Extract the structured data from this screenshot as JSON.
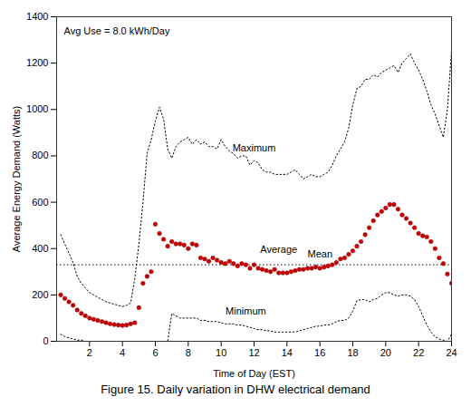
{
  "chart_data": {
    "type": "line",
    "title": "Figure 15.  Daily variation in DHW electrical demand",
    "xlabel": "Time of Day (EST)",
    "ylabel": "Average Energy Demand (Watts)",
    "annotations": [
      "Avg Use = 8.0 kWh/Day"
    ],
    "xlim": [
      0,
      24
    ],
    "ylim": [
      0,
      1400
    ],
    "xticks": [
      2,
      4,
      6,
      8,
      10,
      12,
      14,
      16,
      18,
      20,
      22,
      24
    ],
    "yticks": [
      0,
      200,
      400,
      600,
      800,
      1000,
      1200,
      1400
    ],
    "grid": false,
    "x": [
      0.25,
      0.5,
      0.75,
      1.0,
      1.25,
      1.5,
      1.75,
      2.0,
      2.25,
      2.5,
      2.75,
      3.0,
      3.25,
      3.5,
      3.75,
      4.0,
      4.25,
      4.5,
      4.75,
      5.0,
      5.25,
      5.5,
      5.75,
      6.0,
      6.25,
      6.5,
      6.75,
      7.0,
      7.25,
      7.5,
      7.75,
      8.0,
      8.25,
      8.5,
      8.75,
      9.0,
      9.25,
      9.5,
      9.75,
      10.0,
      10.25,
      10.5,
      10.75,
      11.0,
      11.25,
      11.5,
      11.75,
      12.0,
      12.25,
      12.5,
      12.75,
      13.0,
      13.25,
      13.5,
      13.75,
      14.0,
      14.25,
      14.5,
      14.75,
      15.0,
      15.25,
      15.5,
      15.75,
      16.0,
      16.25,
      16.5,
      16.75,
      17.0,
      17.25,
      17.5,
      17.75,
      18.0,
      18.25,
      18.5,
      18.75,
      19.0,
      19.25,
      19.5,
      19.75,
      20.0,
      20.25,
      20.5,
      20.75,
      21.0,
      21.25,
      21.5,
      21.75,
      22.0,
      22.25,
      22.5,
      22.75,
      23.0,
      23.25,
      23.5,
      23.75,
      24.0
    ],
    "series": [
      {
        "name": "Maximum",
        "type": "line",
        "line_style": "dotted",
        "color": "black",
        "values": [
          460,
          420,
          380,
          340,
          280,
          250,
          230,
          210,
          200,
          190,
          180,
          170,
          165,
          160,
          155,
          150,
          155,
          165,
          270,
          420,
          600,
          810,
          870,
          950,
          1010,
          960,
          830,
          790,
          840,
          860,
          870,
          880,
          850,
          870,
          850,
          860,
          840,
          840,
          830,
          870,
          840,
          820,
          810,
          790,
          800,
          800,
          760,
          780,
          770,
          740,
          730,
          730,
          720,
          720,
          720,
          720,
          730,
          740,
          720,
          700,
          710,
          720,
          710,
          710,
          720,
          730,
          760,
          800,
          830,
          860,
          920,
          1020,
          1090,
          1100,
          1130,
          1130,
          1150,
          1140,
          1160,
          1170,
          1180,
          1190,
          1160,
          1200,
          1220,
          1240,
          1200,
          1170,
          1130,
          1080,
          1020,
          980,
          930,
          880,
          1000,
          1250
        ]
      },
      {
        "name": "Minimum",
        "type": "line",
        "line_style": "dotted",
        "color": "black",
        "values": [
          30,
          20,
          15,
          10,
          5,
          5,
          0,
          0,
          0,
          0,
          0,
          0,
          0,
          0,
          0,
          0,
          0,
          0,
          0,
          0,
          0,
          0,
          0,
          0,
          0,
          0,
          0,
          120,
          110,
          100,
          100,
          100,
          100,
          100,
          90,
          90,
          85,
          85,
          85,
          80,
          75,
          75,
          75,
          70,
          70,
          65,
          60,
          55,
          50,
          50,
          45,
          45,
          40,
          40,
          40,
          40,
          40,
          40,
          45,
          50,
          55,
          60,
          65,
          65,
          70,
          70,
          75,
          85,
          90,
          90,
          100,
          130,
          175,
          180,
          180,
          170,
          180,
          185,
          200,
          210,
          210,
          200,
          195,
          200,
          200,
          195,
          180,
          150,
          110,
          70,
          40,
          20,
          10,
          5,
          0,
          30
        ]
      },
      {
        "name": "Average",
        "type": "scatter",
        "marker": "circle",
        "color": "#cc0000",
        "values": [
          200,
          185,
          170,
          155,
          135,
          120,
          110,
          100,
          95,
          90,
          85,
          80,
          75,
          72,
          70,
          68,
          70,
          75,
          80,
          145,
          250,
          280,
          300,
          505,
          465,
          440,
          410,
          430,
          420,
          420,
          415,
          400,
          420,
          415,
          360,
          355,
          345,
          360,
          350,
          340,
          335,
          345,
          335,
          325,
          335,
          330,
          315,
          330,
          315,
          310,
          305,
          300,
          310,
          295,
          295,
          295,
          300,
          305,
          310,
          310,
          315,
          315,
          320,
          315,
          320,
          325,
          330,
          340,
          355,
          360,
          375,
          390,
          410,
          430,
          460,
          490,
          520,
          545,
          560,
          575,
          590,
          590,
          570,
          545,
          530,
          510,
          490,
          465,
          455,
          450,
          430,
          400,
          360,
          335,
          290,
          250
        ]
      }
    ],
    "mean_line": {
      "y": 330,
      "label": "Mean",
      "line_style": "dotted",
      "color": "black"
    }
  }
}
